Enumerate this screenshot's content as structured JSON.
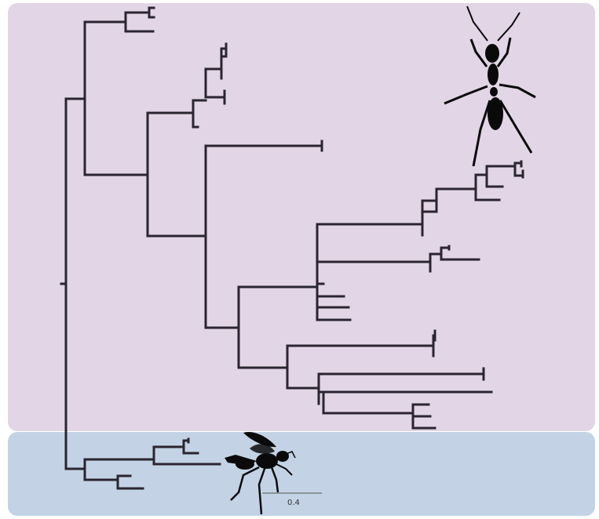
{
  "colors": {
    "upper_panel": "#e2d5e6",
    "lower_panel": "#c3d3e5",
    "branch": "#2a2530",
    "silhouette": "#0a0a0a"
  },
  "icons": {
    "upper_clade": "ant-silhouette-icon",
    "lower_clade": "wasp-silhouette-icon"
  },
  "scale_bar": {
    "label": "0.4",
    "value": 0.4
  }
}
